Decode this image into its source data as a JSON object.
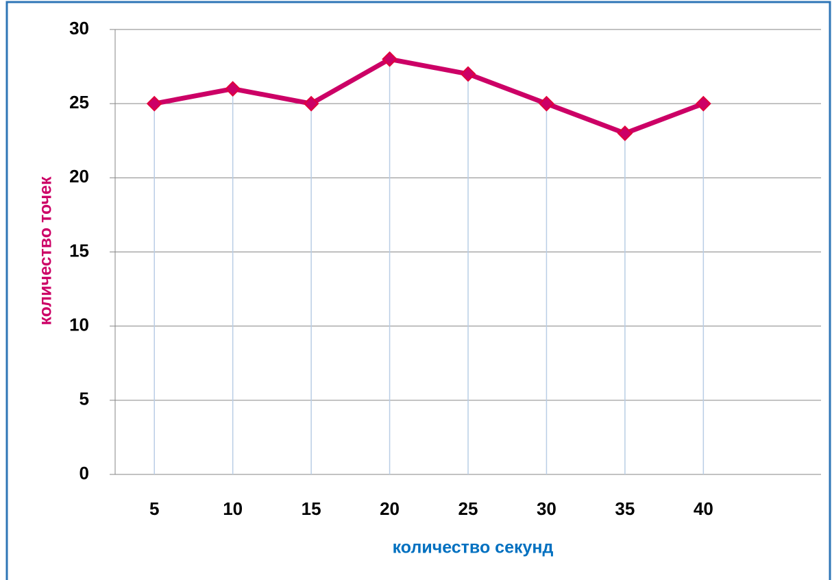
{
  "chart_data": {
    "type": "line",
    "xlabel": "количество секунд",
    "ylabel": "количество точек",
    "categories": [
      "5",
      "10",
      "15",
      "20",
      "25",
      "30",
      "35",
      "40",
      null
    ],
    "series": [
      {
        "name": null,
        "color": "#cc0066",
        "marker_color": "#e0003c",
        "values": [
          25,
          26,
          25,
          28,
          27,
          25,
          23,
          25,
          null
        ]
      }
    ],
    "ylim": [
      0,
      30
    ],
    "yticks": [
      0,
      5,
      10,
      15,
      20,
      25,
      30
    ],
    "grid": true,
    "drop_lines": true,
    "xlabel_color": "#0070c0",
    "ylabel_color": "#cc0066"
  }
}
